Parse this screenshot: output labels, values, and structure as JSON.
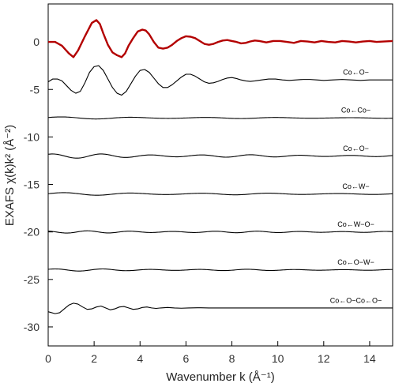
{
  "chart_data": {
    "type": "line",
    "xlabel": "Wavenumber k (Å⁻¹)",
    "ylabel": "EXAFS χ(k)k² (Å⁻²)",
    "xlim": [
      0,
      15
    ],
    "ylim": [
      -32,
      4
    ],
    "x_ticks": [
      0,
      2,
      4,
      6,
      8,
      10,
      12,
      14
    ],
    "y_ticks": [
      0,
      -5,
      -10,
      -15,
      -20,
      -25,
      -30
    ],
    "colors": {
      "experiment": "#b30000",
      "fit": "#000000",
      "axis": "#000000"
    },
    "series": [
      {
        "key": "exp",
        "offset": 0,
        "color": "#b30000",
        "x": [
          0.0,
          0.3,
          0.6,
          0.9,
          1.1,
          1.3,
          1.6,
          1.9,
          2.1,
          2.25,
          2.4,
          2.6,
          2.8,
          3.0,
          3.2,
          3.35,
          3.5,
          3.7,
          3.9,
          4.1,
          4.25,
          4.4,
          4.6,
          4.8,
          5.0,
          5.2,
          5.4,
          5.6,
          5.8,
          6.0,
          6.2,
          6.4,
          6.6,
          6.8,
          7.0,
          7.2,
          7.4,
          7.6,
          7.8,
          8.0,
          8.2,
          8.4,
          8.6,
          8.8,
          9.0,
          9.2,
          9.5,
          9.8,
          10.1,
          10.4,
          10.7,
          11.0,
          11.3,
          11.6,
          11.9,
          12.2,
          12.5,
          12.8,
          13.1,
          13.4,
          13.7,
          14.0,
          14.3,
          14.6,
          15.0
        ],
        "y": [
          0.0,
          0.0,
          -0.4,
          -1.2,
          -1.6,
          -0.9,
          0.6,
          2.0,
          2.3,
          1.9,
          0.9,
          -0.3,
          -1.1,
          -1.4,
          -1.6,
          -1.2,
          -0.4,
          0.4,
          1.1,
          1.3,
          1.2,
          0.8,
          0.0,
          -0.6,
          -0.7,
          -0.6,
          -0.3,
          0.1,
          0.4,
          0.6,
          0.55,
          0.4,
          0.1,
          -0.2,
          -0.3,
          -0.2,
          0.0,
          0.15,
          0.2,
          0.1,
          0.0,
          -0.15,
          -0.1,
          0.05,
          0.15,
          0.1,
          -0.05,
          0.1,
          0.1,
          0.0,
          -0.1,
          0.1,
          0.05,
          -0.05,
          0.1,
          0.0,
          -0.05,
          0.1,
          0.05,
          -0.05,
          0.05,
          0.1,
          0.0,
          0.05,
          0.1
        ]
      },
      {
        "key": "fit",
        "offset": -4,
        "color": "#000000",
        "x": [
          0.0,
          0.2,
          0.4,
          0.6,
          0.8,
          1.0,
          1.2,
          1.4,
          1.6,
          1.8,
          2.0,
          2.2,
          2.4,
          2.6,
          2.8,
          3.0,
          3.2,
          3.4,
          3.6,
          3.8,
          4.0,
          4.2,
          4.4,
          4.6,
          4.8,
          5.0,
          5.2,
          5.4,
          5.6,
          5.8,
          6.0,
          6.2,
          6.4,
          6.6,
          6.8,
          7.0,
          7.2,
          7.4,
          7.6,
          7.8,
          8.0,
          8.2,
          8.4,
          8.6,
          8.8,
          9.0,
          9.3,
          9.6,
          9.9,
          10.2,
          10.5,
          10.8,
          11.1,
          11.4,
          11.7,
          12.0,
          12.4,
          12.8,
          13.2,
          13.6,
          14.0,
          14.4,
          15.0
        ],
        "y": [
          -0.2,
          0.1,
          0.1,
          -0.1,
          -0.6,
          -1.1,
          -1.4,
          -1.2,
          -0.3,
          0.8,
          1.4,
          1.5,
          1.0,
          0.1,
          -0.8,
          -1.4,
          -1.6,
          -1.2,
          -0.4,
          0.4,
          1.0,
          1.1,
          0.8,
          0.2,
          -0.4,
          -0.8,
          -0.8,
          -0.5,
          -0.1,
          0.3,
          0.6,
          0.6,
          0.4,
          0.1,
          -0.2,
          -0.35,
          -0.3,
          -0.15,
          0.05,
          0.2,
          0.25,
          0.15,
          0.0,
          -0.1,
          -0.15,
          -0.1,
          0.0,
          0.1,
          0.1,
          0.0,
          -0.05,
          0.0,
          0.05,
          0.05,
          0.0,
          -0.05,
          0.0,
          0.05,
          0.0,
          -0.05,
          0.0,
          0.0,
          0.0
        ]
      },
      {
        "key": "co-o-1",
        "label": "Co←O−",
        "label_y": -3.2,
        "offset": -8,
        "color": "#000000",
        "wave": {
          "amp": 0.1,
          "freq": 2.0,
          "decay": 0.08,
          "phase": 0.5
        }
      },
      {
        "key": "co-co",
        "label": "Co←Co−",
        "label_y": -7.2,
        "offset": -12,
        "color": "#000000",
        "wave": {
          "amp": 0.2,
          "freq": 2.9,
          "decay": 0.08,
          "phase": 1.1
        }
      },
      {
        "key": "co-o-2",
        "label": "Co←O−",
        "label_y": -11.2,
        "offset": -16,
        "color": "#000000",
        "wave": {
          "amp": 0.12,
          "freq": 2.1,
          "decay": 0.06,
          "phase": 0.2
        }
      },
      {
        "key": "co-w",
        "label": "Co←W−",
        "label_y": -15.2,
        "offset": -20,
        "color": "#000000",
        "wave": {
          "amp": 0.1,
          "freq": 3.4,
          "decay": 0.05,
          "phase": 2.0
        }
      },
      {
        "key": "co-w-o",
        "label": "Co←W−O−",
        "label_y": -19.2,
        "offset": -24,
        "color": "#000000",
        "wave": {
          "amp": 0.1,
          "freq": 3.0,
          "decay": 0.07,
          "phase": 0.7
        }
      },
      {
        "key": "co-o-w",
        "label": "Co←O−W−",
        "label_y": -23.2,
        "offset": -28,
        "color": "#000000",
        "x": [
          0.0,
          0.3,
          0.5,
          0.7,
          0.9,
          1.1,
          1.3,
          1.5,
          1.7,
          1.9,
          2.1,
          2.3,
          2.5,
          2.7,
          2.9,
          3.1,
          3.3,
          3.5,
          3.7,
          3.9,
          4.1,
          4.3,
          4.5,
          4.7,
          4.9,
          5.2,
          5.5,
          5.8,
          6.1,
          6.5,
          7.0,
          7.5,
          8.0,
          9.0,
          10.0,
          11.0,
          12.0,
          13.0,
          14.0,
          15.0
        ],
        "y": [
          -0.4,
          -0.6,
          -0.5,
          -0.1,
          0.3,
          0.5,
          0.4,
          0.1,
          -0.15,
          -0.1,
          0.1,
          0.2,
          0.0,
          -0.2,
          -0.1,
          0.1,
          0.15,
          0.0,
          -0.15,
          -0.1,
          0.05,
          0.1,
          0.0,
          -0.05,
          0.0,
          0.05,
          0.0,
          -0.03,
          0.0,
          0.02,
          0.0,
          0.0,
          0.0,
          0.0,
          0.0,
          0.0,
          0.0,
          0.0,
          0.0,
          0.0
        ]
      }
    ],
    "last_label": {
      "text": "Co←O−Co←O−",
      "label_y": -27.2
    }
  }
}
